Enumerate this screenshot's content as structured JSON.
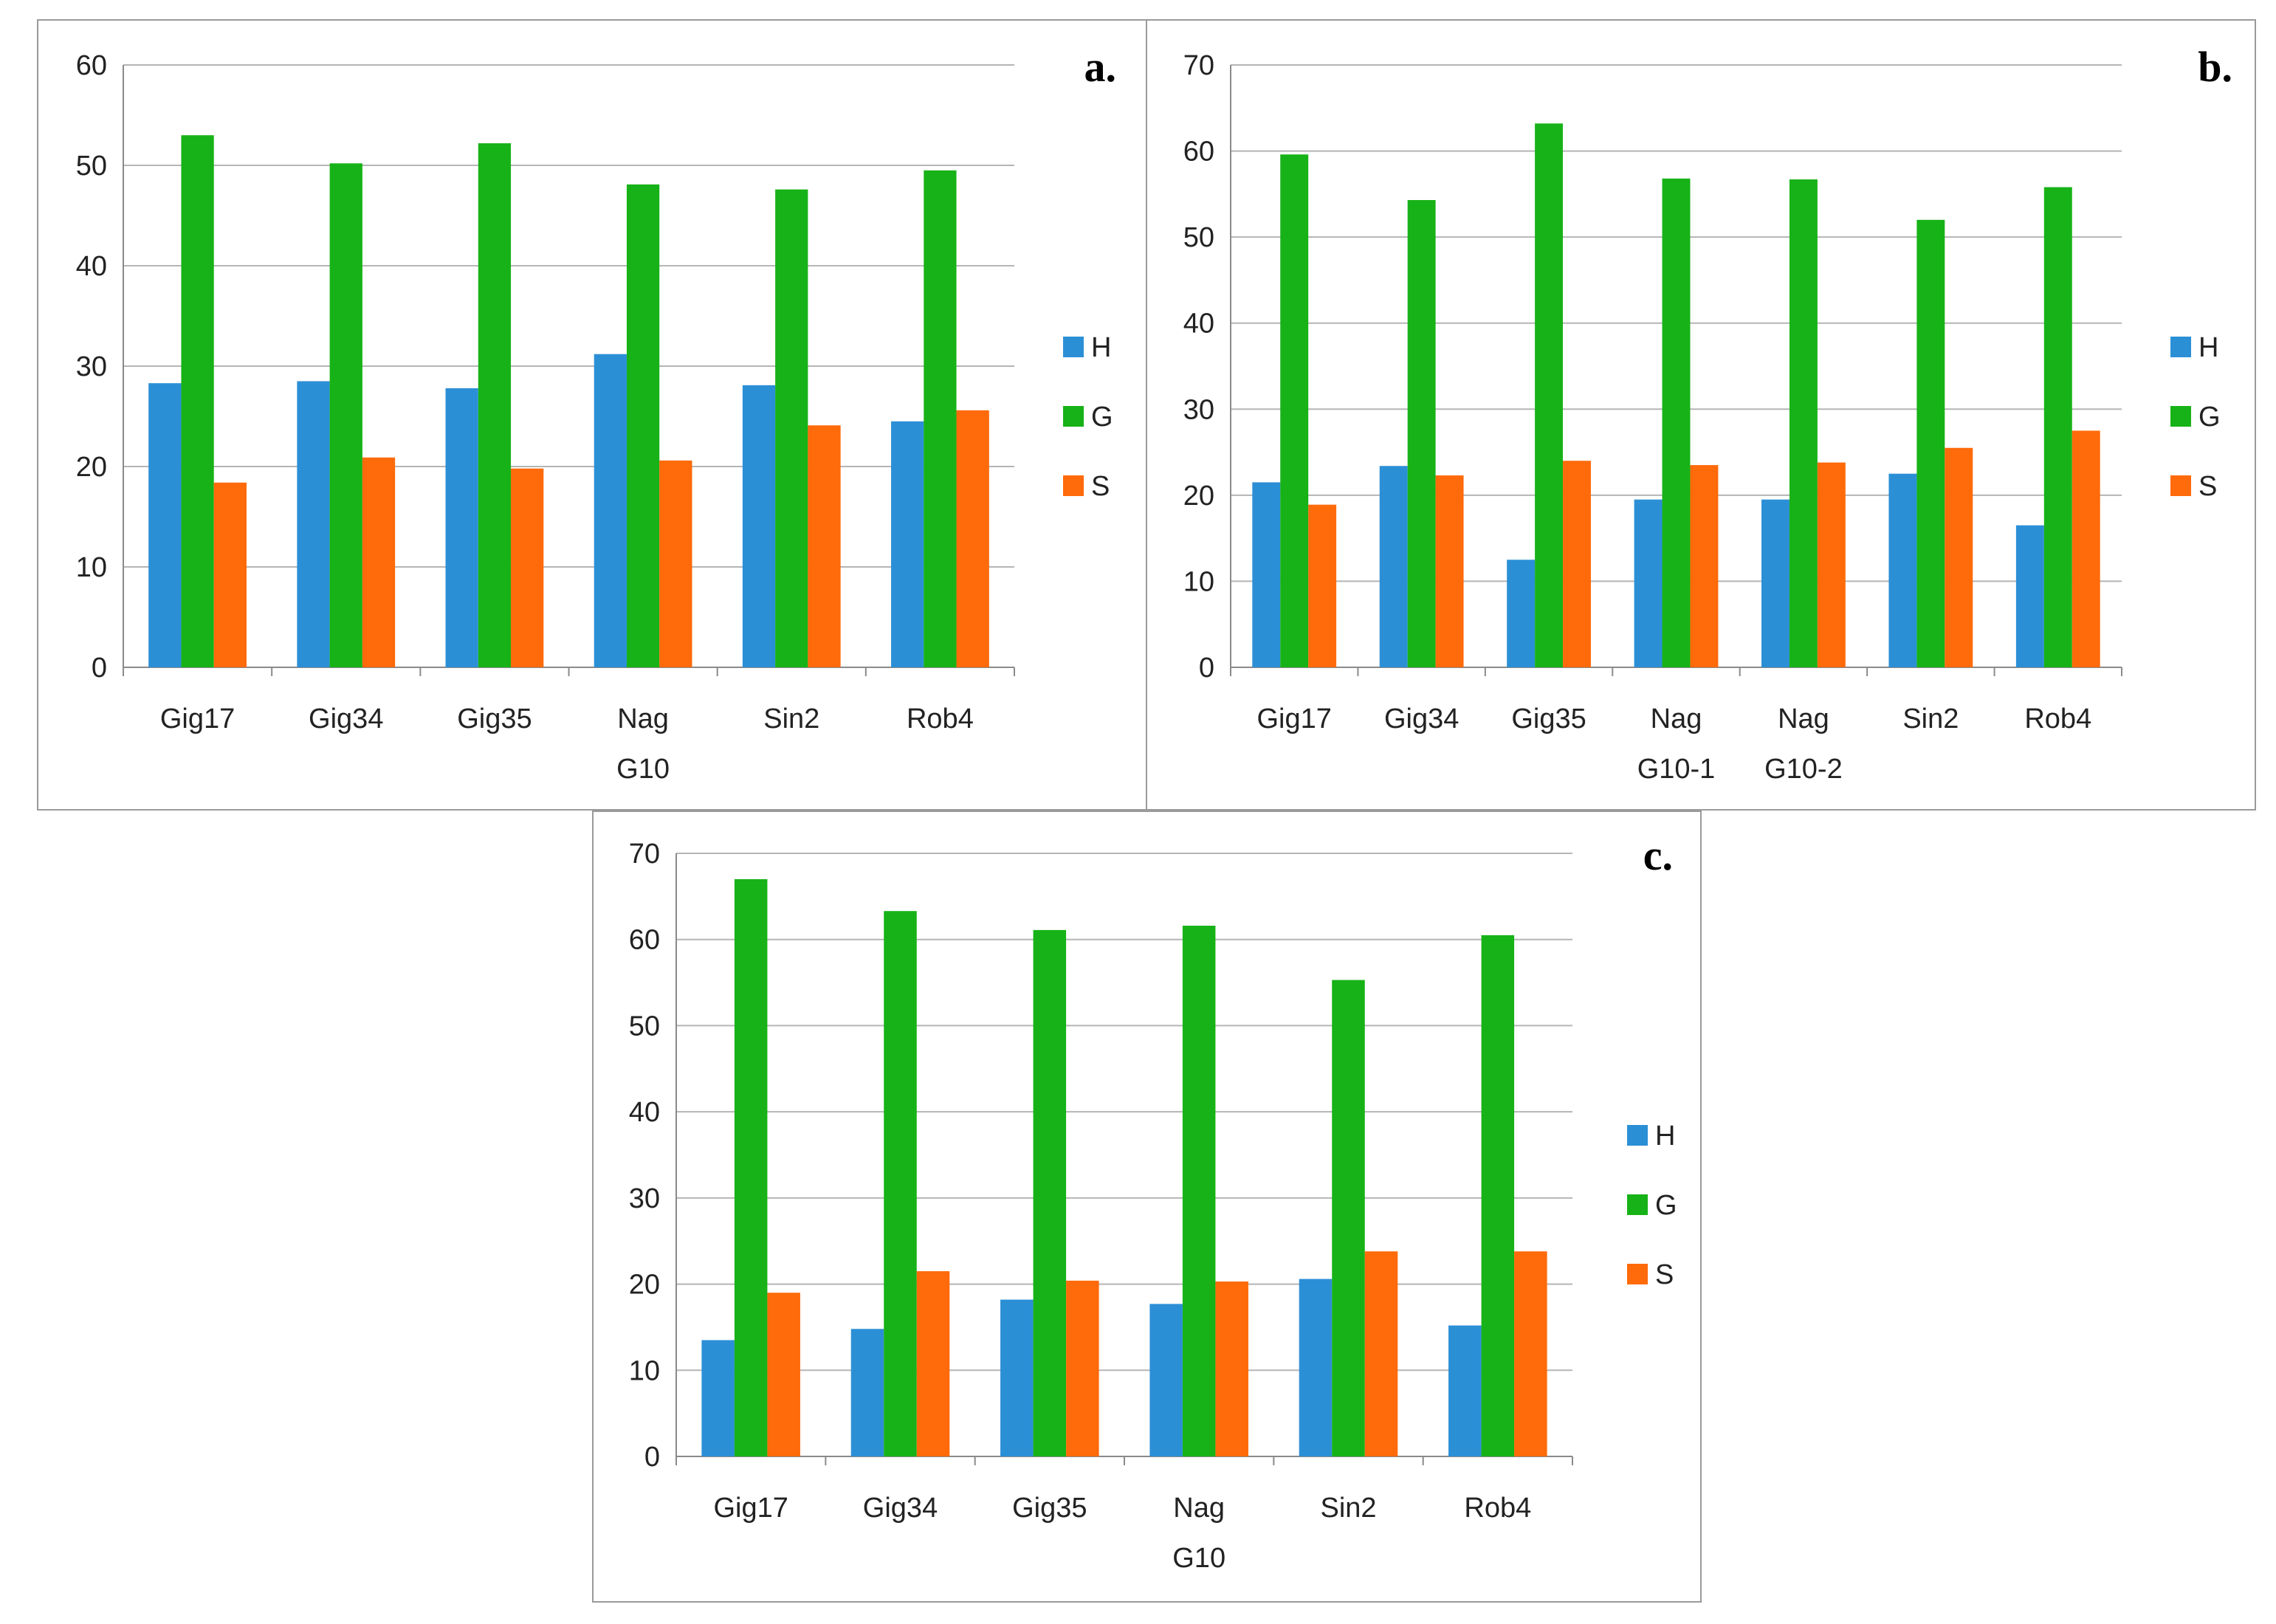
{
  "chart_data": [
    {
      "type": "bar",
      "panel_label": "a.",
      "categories": [
        [
          "Gig17"
        ],
        [
          "Gig34"
        ],
        [
          "Gig35"
        ],
        [
          "Nag",
          "G10"
        ],
        [
          "Sin2"
        ],
        [
          "Rob4"
        ]
      ],
      "series": [
        {
          "name": "H",
          "color": "#2b8fd6",
          "values": [
            28.3,
            28.5,
            27.8,
            31.2,
            28.1,
            24.5
          ]
        },
        {
          "name": "G",
          "color": "#17b217",
          "values": [
            53.0,
            50.2,
            52.2,
            48.1,
            47.6,
            49.5
          ]
        },
        {
          "name": "S",
          "color": "#ff6a0a",
          "values": [
            18.4,
            20.9,
            19.8,
            20.6,
            24.1,
            25.6
          ]
        }
      ],
      "ylim": [
        0,
        60
      ],
      "yticks": [
        0,
        10,
        20,
        30,
        40,
        50,
        60
      ],
      "title": "",
      "xlabel": "",
      "ylabel": "",
      "grid": true,
      "legend": "right"
    },
    {
      "type": "bar",
      "panel_label": "b.",
      "categories": [
        [
          "Gig17"
        ],
        [
          "Gig34"
        ],
        [
          "Gig35"
        ],
        [
          "Nag",
          "G10-1"
        ],
        [
          "Nag",
          "G10-2"
        ],
        [
          "Sin2"
        ],
        [
          "Rob4"
        ]
      ],
      "series": [
        {
          "name": "H",
          "color": "#2b8fd6",
          "values": [
            21.5,
            23.4,
            12.5,
            19.5,
            19.5,
            22.5,
            16.5
          ]
        },
        {
          "name": "G",
          "color": "#17b217",
          "values": [
            59.6,
            54.3,
            63.2,
            56.8,
            56.7,
            52.0,
            55.8
          ]
        },
        {
          "name": "S",
          "color": "#ff6a0a",
          "values": [
            18.9,
            22.3,
            24.0,
            23.5,
            23.8,
            25.5,
            27.5
          ]
        }
      ],
      "ylim": [
        0,
        70
      ],
      "yticks": [
        0,
        10,
        20,
        30,
        40,
        50,
        60,
        70
      ],
      "title": "",
      "xlabel": "",
      "ylabel": "",
      "grid": true,
      "legend": "right"
    },
    {
      "type": "bar",
      "panel_label": "c.",
      "categories": [
        [
          "Gig17"
        ],
        [
          "Gig34"
        ],
        [
          "Gig35"
        ],
        [
          "Nag",
          "G10"
        ],
        [
          "Sin2"
        ],
        [
          "Rob4"
        ]
      ],
      "series": [
        {
          "name": "H",
          "color": "#2b8fd6",
          "values": [
            13.5,
            14.8,
            18.2,
            17.7,
            20.6,
            15.2
          ]
        },
        {
          "name": "G",
          "color": "#17b217",
          "values": [
            67.0,
            63.3,
            61.1,
            61.6,
            55.3,
            60.5
          ]
        },
        {
          "name": "S",
          "color": "#ff6a0a",
          "values": [
            19.0,
            21.5,
            20.4,
            20.3,
            23.8,
            23.8
          ]
        }
      ],
      "ylim": [
        0,
        70
      ],
      "yticks": [
        0,
        10,
        20,
        30,
        40,
        50,
        60,
        70
      ],
      "title": "",
      "xlabel": "",
      "ylabel": "",
      "grid": true,
      "legend": "right"
    }
  ]
}
